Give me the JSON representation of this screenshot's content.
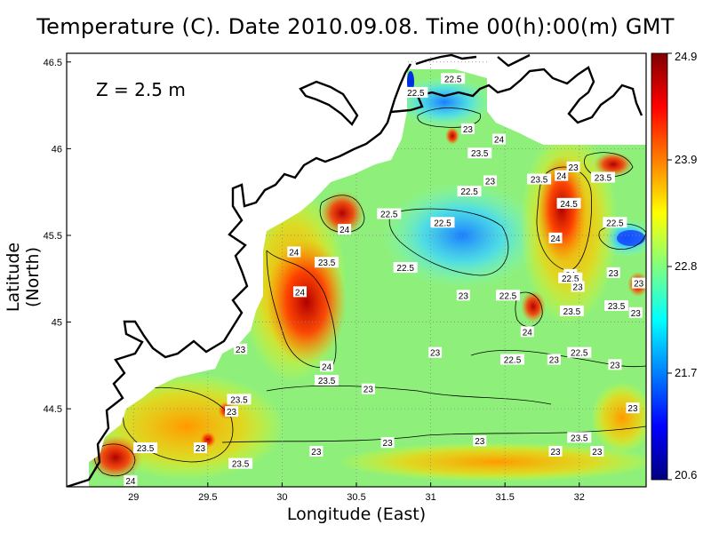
{
  "title": "Temperature (C). Date 2010.09.08. Time 00(h):00(m) GMT",
  "depth_label": "Z = 2.5 m",
  "chart_data": {
    "type": "heatmap",
    "title": "Temperature (C). Date 2010.09.08. Time 00(h):00(m) GMT",
    "xlabel": "Longitude (East)",
    "ylabel": "Latitude (North)",
    "xlim": [
      28.55,
      32.45
    ],
    "ylim": [
      44.05,
      46.55
    ],
    "x_ticks": [
      "29",
      "29.5",
      "30",
      "30.5",
      "31",
      "31.5",
      "32"
    ],
    "y_ticks": [
      "44.5",
      "45",
      "45.5",
      "46",
      "46.5"
    ],
    "grid": true,
    "colorbar": {
      "min": 20.6,
      "max": 24.9,
      "tick_labels": [
        "24.9",
        "23.9",
        "22.8",
        "21.7",
        "20.6"
      ],
      "colors": [
        "#00007f",
        "#0000ff",
        "#007fff",
        "#00ffff",
        "#7fff7f",
        "#ffff00",
        "#ff7f00",
        "#ff0000",
        "#7f0000"
      ]
    },
    "contour_labels": [
      {
        "text": "22.5",
        "lon": 31.15,
        "lat": 46.4
      },
      {
        "text": "22.5",
        "lon": 30.9,
        "lat": 46.32
      },
      {
        "text": "23",
        "lon": 31.25,
        "lat": 46.11
      },
      {
        "text": "24",
        "lon": 31.46,
        "lat": 46.05
      },
      {
        "text": "23.5",
        "lon": 31.33,
        "lat": 45.97
      },
      {
        "text": "23",
        "lon": 31.4,
        "lat": 45.81
      },
      {
        "text": "22.5",
        "lon": 31.26,
        "lat": 45.75
      },
      {
        "text": "23.5",
        "lon": 31.73,
        "lat": 45.82
      },
      {
        "text": "24",
        "lon": 31.88,
        "lat": 45.84
      },
      {
        "text": "23",
        "lon": 31.96,
        "lat": 45.89
      },
      {
        "text": "23.5",
        "lon": 32.16,
        "lat": 45.83
      },
      {
        "text": "24.5",
        "lon": 31.93,
        "lat": 45.68
      },
      {
        "text": "22.5",
        "lon": 30.72,
        "lat": 45.62
      },
      {
        "text": "22.5",
        "lon": 31.08,
        "lat": 45.57
      },
      {
        "text": "22.5",
        "lon": 32.24,
        "lat": 45.57
      },
      {
        "text": "24",
        "lon": 30.42,
        "lat": 45.53
      },
      {
        "text": "24",
        "lon": 31.84,
        "lat": 45.48
      },
      {
        "text": "24",
        "lon": 30.08,
        "lat": 45.4
      },
      {
        "text": "23.5",
        "lon": 30.3,
        "lat": 45.34
      },
      {
        "text": "22.5",
        "lon": 30.83,
        "lat": 45.31
      },
      {
        "text": "24",
        "lon": 31.94,
        "lat": 45.27
      },
      {
        "text": "22.5",
        "lon": 31.94,
        "lat": 45.25
      },
      {
        "text": "23",
        "lon": 32.23,
        "lat": 45.28
      },
      {
        "text": "23",
        "lon": 32.4,
        "lat": 45.22
      },
      {
        "text": "23",
        "lon": 31.99,
        "lat": 45.2
      },
      {
        "text": "24",
        "lon": 30.12,
        "lat": 45.17
      },
      {
        "text": "23",
        "lon": 31.22,
        "lat": 45.15
      },
      {
        "text": "22.5",
        "lon": 31.52,
        "lat": 45.15
      },
      {
        "text": "23.5",
        "lon": 32.25,
        "lat": 45.09
      },
      {
        "text": "23.5",
        "lon": 31.95,
        "lat": 45.06
      },
      {
        "text": "23",
        "lon": 32.38,
        "lat": 45.05
      },
      {
        "text": "24",
        "lon": 31.65,
        "lat": 44.94
      },
      {
        "text": "23",
        "lon": 29.72,
        "lat": 44.84
      },
      {
        "text": "23",
        "lon": 31.03,
        "lat": 44.82
      },
      {
        "text": "22.5",
        "lon": 31.55,
        "lat": 44.78
      },
      {
        "text": "23",
        "lon": 31.83,
        "lat": 44.78
      },
      {
        "text": "22.5",
        "lon": 32.0,
        "lat": 44.82
      },
      {
        "text": "23",
        "lon": 32.24,
        "lat": 44.75
      },
      {
        "text": "24",
        "lon": 30.3,
        "lat": 44.74
      },
      {
        "text": "23.5",
        "lon": 30.3,
        "lat": 44.66
      },
      {
        "text": "23",
        "lon": 30.58,
        "lat": 44.61
      },
      {
        "text": "23",
        "lon": 29.66,
        "lat": 44.48
      },
      {
        "text": "23.5",
        "lon": 29.71,
        "lat": 44.55
      },
      {
        "text": "23",
        "lon": 32.36,
        "lat": 44.5
      },
      {
        "text": "23.5",
        "lon": 29.08,
        "lat": 44.27
      },
      {
        "text": "23",
        "lon": 29.45,
        "lat": 44.27
      },
      {
        "text": "23",
        "lon": 30.23,
        "lat": 44.25
      },
      {
        "text": "23",
        "lon": 30.71,
        "lat": 44.3
      },
      {
        "text": "23",
        "lon": 31.33,
        "lat": 44.31
      },
      {
        "text": "23",
        "lon": 31.84,
        "lat": 44.25
      },
      {
        "text": "23.5",
        "lon": 32.0,
        "lat": 44.33
      },
      {
        "text": "23",
        "lon": 32.12,
        "lat": 44.25
      },
      {
        "text": "23.5",
        "lon": 29.72,
        "lat": 44.18
      },
      {
        "text": "24",
        "lon": 28.98,
        "lat": 44.08
      }
    ]
  }
}
